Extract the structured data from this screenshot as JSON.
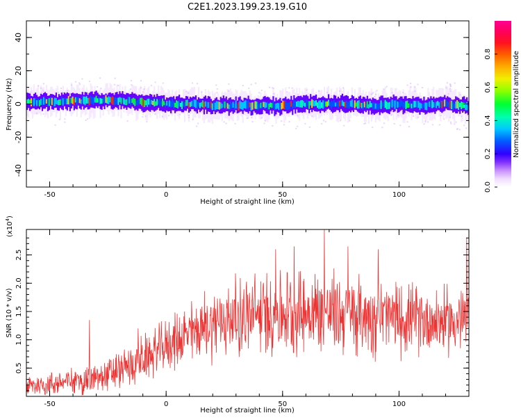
{
  "figure_title": "C2E1.2023.199.23.19.G10",
  "colors": {
    "snr_line": "#ee3333",
    "spectrogram_scale": [
      "#ffffff",
      "#f0dcff",
      "#d7a8ff",
      "#a45cff",
      "#6600ff",
      "#2200ff",
      "#0055ff",
      "#00c8ff",
      "#00ffb0",
      "#00ff30",
      "#80ff00",
      "#e0ff00",
      "#ffc800",
      "#ff7a00",
      "#ff2a00",
      "#ff0040",
      "#ff0090"
    ]
  },
  "chart_data": [
    {
      "type": "heatmap",
      "title": "",
      "xlabel": "Height of straight line (km)",
      "ylabel": "Frequency (Hz)",
      "xlim": [
        -60,
        130
      ],
      "ylim": [
        -50,
        50
      ],
      "x_ticks": [
        -50,
        0,
        50,
        100
      ],
      "y_ticks": [
        -40,
        -20,
        0,
        20,
        40
      ],
      "colorbar": {
        "label": "Normalized spectral amplitude",
        "range": [
          0,
          1
        ],
        "ticks": [
          "0.0",
          "0.2",
          "0.4",
          "0.6",
          "0.8"
        ]
      },
      "ridge_center_hz": [
        [
          -60,
          1.0
        ],
        [
          -45,
          1.5
        ],
        [
          -30,
          2.5
        ],
        [
          -20,
          2.0
        ],
        [
          -10,
          1.0
        ],
        [
          0,
          0.0
        ],
        [
          10,
          0.0
        ],
        [
          20,
          -1.0
        ],
        [
          35,
          -1.0
        ],
        [
          50,
          -1.0
        ],
        [
          60,
          0.0
        ],
        [
          75,
          0.0
        ],
        [
          90,
          -1.0
        ],
        [
          100,
          0.0
        ],
        [
          110,
          -1.0
        ],
        [
          120,
          0.0
        ],
        [
          130,
          -2.0
        ]
      ],
      "ridge_halfwidth_hz": 4,
      "halo_halfwidth_hz": 9
    },
    {
      "type": "line",
      "title": "",
      "xlabel": "Height of straight line (km)",
      "ylabel": "SNR (10 * v/v)",
      "y_multiplier_label": "(x10",
      "y_multiplier_exp": "4",
      "y_multiplier_close": ")",
      "xlim": [
        -60,
        130
      ],
      "ylim": [
        0,
        2.95
      ],
      "x_ticks": [
        -50,
        0,
        50,
        100
      ],
      "y_ticks": [
        "0.5",
        "1.0",
        "1.5",
        "2.0",
        "2.5"
      ],
      "series": [
        {
          "x": [
            -60,
            -50,
            -40,
            -30,
            -20,
            -10,
            0,
            10,
            20,
            30,
            40,
            50,
            60,
            70,
            80,
            90,
            100,
            110,
            120,
            130
          ],
          "mean": [
            0.18,
            0.22,
            0.27,
            0.3,
            0.45,
            0.65,
            0.9,
            1.1,
            1.3,
            1.4,
            1.45,
            1.5,
            1.5,
            1.48,
            1.45,
            1.42,
            1.38,
            1.35,
            1.33,
            1.35
          ],
          "spread": [
            0.2,
            0.22,
            0.25,
            0.28,
            0.35,
            0.4,
            0.45,
            0.55,
            0.65,
            0.7,
            0.75,
            0.75,
            0.75,
            0.75,
            0.7,
            0.7,
            0.65,
            0.6,
            0.6,
            0.65
          ]
        }
      ],
      "peaks": [
        [
          -33,
          1.35
        ],
        [
          -12,
          1.2
        ],
        [
          8,
          1.5
        ],
        [
          47,
          2.6
        ],
        [
          55,
          2.65
        ],
        [
          68,
          2.95
        ],
        [
          78,
          2.65
        ],
        [
          91,
          2.6
        ],
        [
          129,
          2.8
        ]
      ]
    }
  ]
}
